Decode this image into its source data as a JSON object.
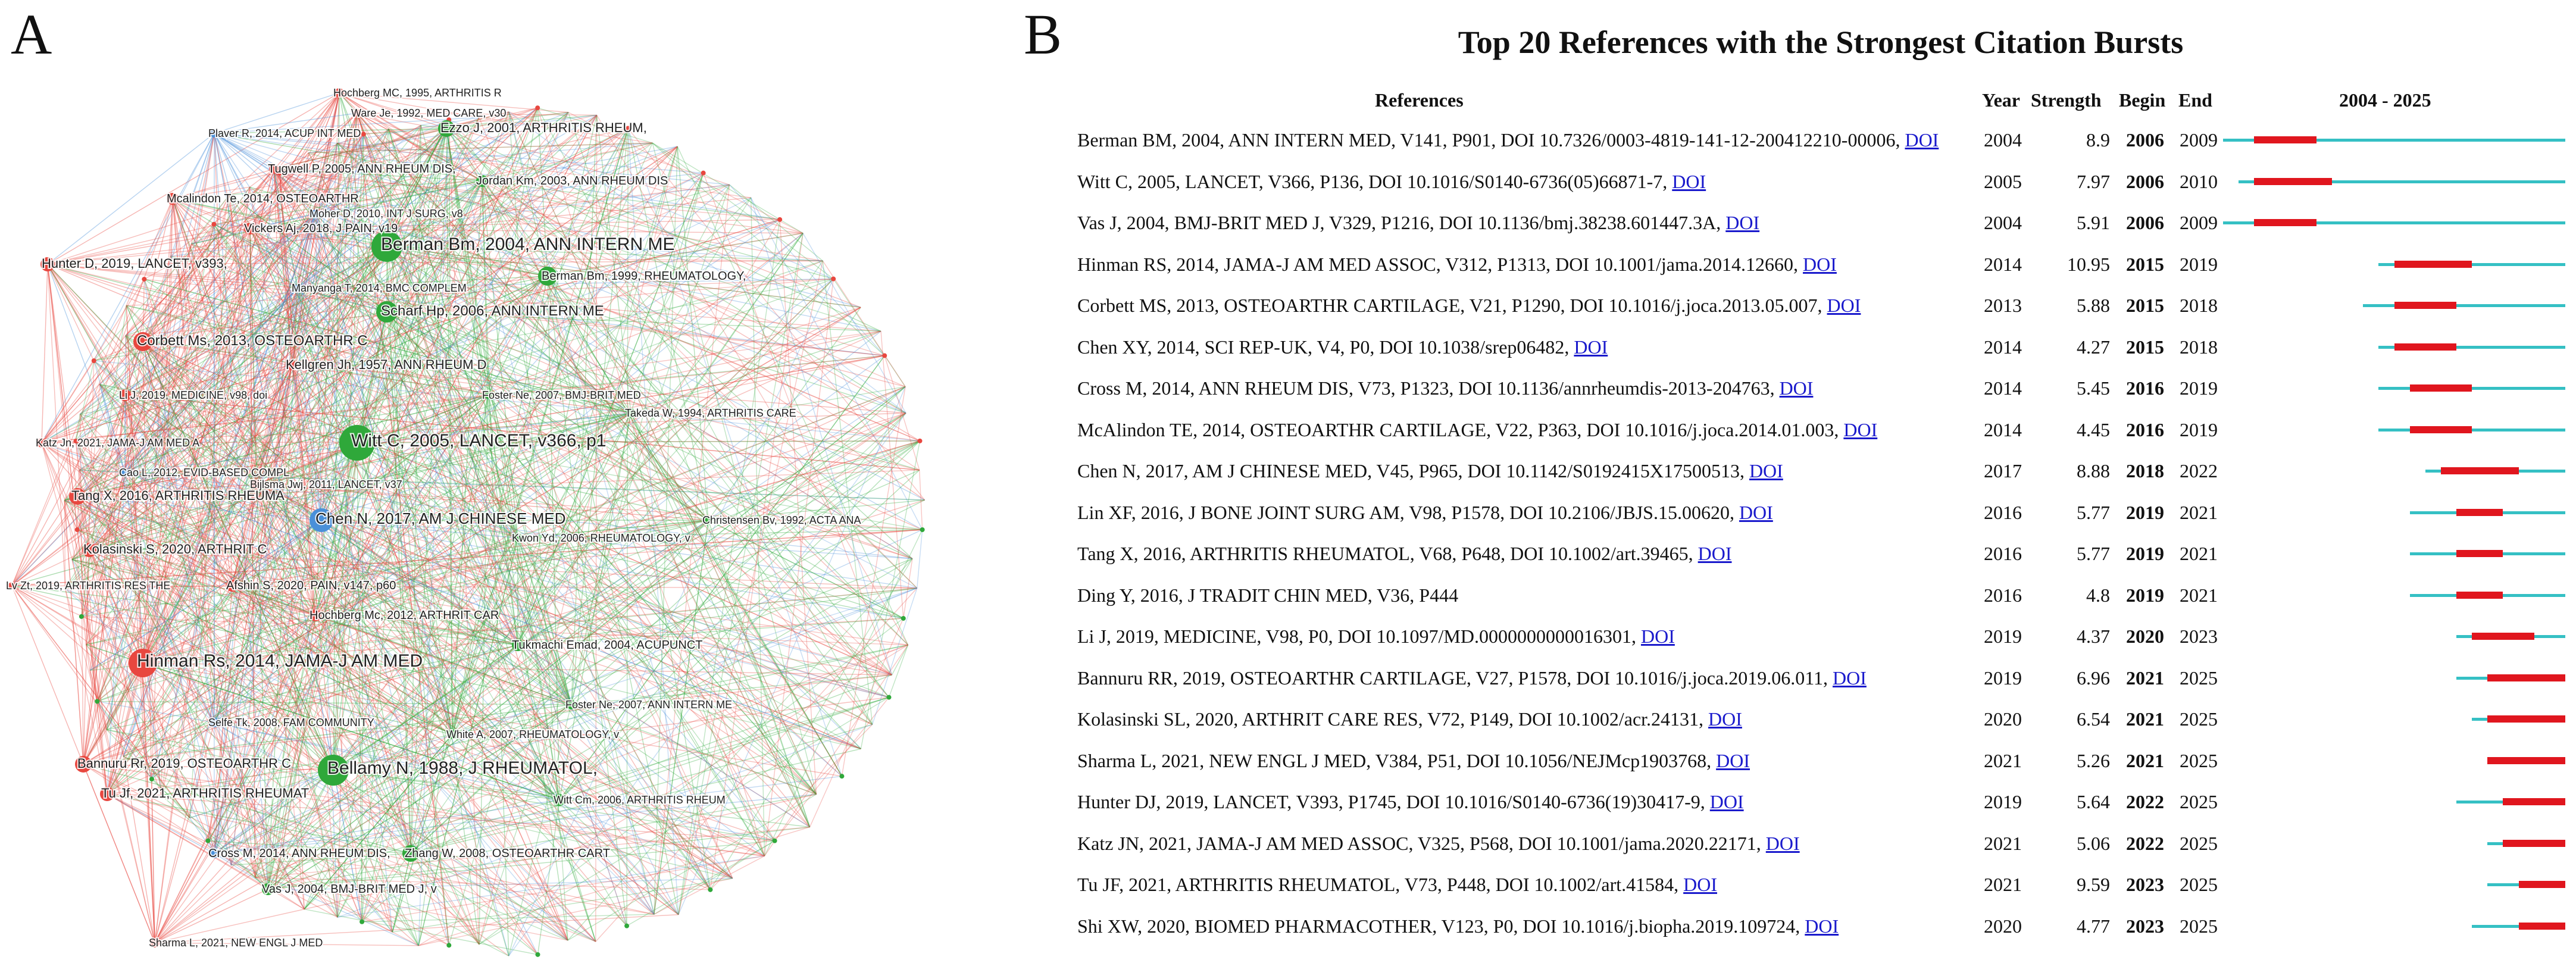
{
  "panels": {
    "left_letter": "A",
    "right_letter": "B"
  },
  "network": {
    "cluster_colors": {
      "red": "#e8473f",
      "green": "#2fa83a",
      "blue": "#4a90d9"
    },
    "labels": [
      {
        "text": "Hochberg MC, 1995, ARTHRITIS R",
        "cluster": "red"
      },
      {
        "text": "Ware Je, 1992, MED CARE, v30",
        "cluster": "red"
      },
      {
        "text": "Plaver R, 2014, ACUP INT MED",
        "cluster": "blue"
      },
      {
        "text": "Ezzo J, 2001, ARTHRITIS RHEUM,",
        "cluster": "green"
      },
      {
        "text": "Tugwell P, 2005, ANN RHEUM DIS,",
        "cluster": "red"
      },
      {
        "text": "Jordan Km, 2003, ANN RHEUM DIS",
        "cluster": "green"
      },
      {
        "text": "Mcalindon Te, 2014, OSTEOARTHR",
        "cluster": "red"
      },
      {
        "text": "Moher D, 2010, INT J SURG, v8",
        "cluster": "blue"
      },
      {
        "text": "Vickers Aj, 2018, J PAIN, v19",
        "cluster": "red"
      },
      {
        "text": "Hunter D, 2019, LANCET, v393,",
        "cluster": "red"
      },
      {
        "text": "Berman Bm, 2004, ANN INTERN ME",
        "cluster": "green"
      },
      {
        "text": "Manyanga T, 2014, BMC COMPLEM",
        "cluster": "blue"
      },
      {
        "text": "Berman Bm, 1999, RHEUMATOLOGY,",
        "cluster": "green"
      },
      {
        "text": "Scharf Hp, 2006, ANN INTERN ME",
        "cluster": "green"
      },
      {
        "text": "Corbett Ms, 2013, OSTEOARTHR C",
        "cluster": "red"
      },
      {
        "text": "Kellgren Jh, 1957, ANN RHEUM D",
        "cluster": "red"
      },
      {
        "text": "Li J, 2019, MEDICINE, v98, doi",
        "cluster": "red"
      },
      {
        "text": "Foster Ne, 2007, BMJ-BRIT MED",
        "cluster": "green"
      },
      {
        "text": "Takeda W, 1994, ARTHRITIS CARE",
        "cluster": "green"
      },
      {
        "text": "Katz Jn, 2021, JAMA-J AM MED A",
        "cluster": "red"
      },
      {
        "text": "Witt C, 2005, LANCET, v366, p1",
        "cluster": "green"
      },
      {
        "text": "Cao L, 2012, EVID-BASED COMPL",
        "cluster": "blue"
      },
      {
        "text": "Tang X, 2016, ARTHRITIS RHEUMA",
        "cluster": "red"
      },
      {
        "text": "Bijlsma Jwj, 2011, LANCET, v37",
        "cluster": "red"
      },
      {
        "text": "Christensen Bv, 1992, ACTA ANA",
        "cluster": "green"
      },
      {
        "text": "Chen N, 2017, AM J CHINESE MED",
        "cluster": "blue"
      },
      {
        "text": "Kolasinski S, 2020, ARTHRIT C",
        "cluster": "red"
      },
      {
        "text": "Kwon Yd, 2006, RHEUMATOLOGY, v",
        "cluster": "green"
      },
      {
        "text": "Lv Zt, 2019, ARTHRITIS RES THE",
        "cluster": "red"
      },
      {
        "text": "Afshin S, 2020, PAIN, v147, p60",
        "cluster": "red"
      },
      {
        "text": "Hochberg Mc, 2012, ARTHRIT CAR",
        "cluster": "red"
      },
      {
        "text": "Tukmachi Emad, 2004, ACUPUNCT",
        "cluster": "green"
      },
      {
        "text": "Hinman Rs, 2014, JAMA-J AM MED",
        "cluster": "red"
      },
      {
        "text": "Foster Ne, 2007, ANN INTERN ME",
        "cluster": "green"
      },
      {
        "text": "Selfe Tk, 2008, FAM COMMUNITY",
        "cluster": "blue"
      },
      {
        "text": "White A, 2007, RHEUMATOLOGY, v",
        "cluster": "green"
      },
      {
        "text": "Bannuru Rr, 2019, OSTEOARTHR C",
        "cluster": "red"
      },
      {
        "text": "Bellamy N, 1988, J RHEUMATOL,",
        "cluster": "green"
      },
      {
        "text": "Tu Jf, 2021, ARTHRITIS RHEUMAT",
        "cluster": "red"
      },
      {
        "text": "Witt Cm, 2006, ARTHRITIS RHEUM",
        "cluster": "green"
      },
      {
        "text": "Cross M, 2014, ANN RHEUM DIS,",
        "cluster": "blue"
      },
      {
        "text": "Zhang W, 2008, OSTEOARTHR CART",
        "cluster": "green"
      },
      {
        "text": "Vas J, 2004, BMJ-BRIT MED J, v",
        "cluster": "green"
      },
      {
        "text": "Sharma L, 2021, NEW ENGL J MED",
        "cluster": "red"
      }
    ]
  },
  "burst_table": {
    "title": "Top 20 References with the Strongest Citation Bursts",
    "headers": {
      "references": "References",
      "year": "Year",
      "strength": "Strength",
      "begin": "Begin",
      "end": "End",
      "range": "2004 - 2025"
    },
    "timeline": {
      "start": 2004,
      "end": 2025
    },
    "colors": {
      "track": "#35c0c4",
      "burst": "#e0161e",
      "link": "#1a1acc"
    },
    "rows": [
      {
        "ref": "Berman BM, 2004, ANN INTERN MED, V141, P901, DOI 10.7326/0003-4819-141-12-200412210-00006,",
        "doi": "DOI",
        "year": "2004",
        "strength": "8.9",
        "begin": "2006",
        "end": "2009"
      },
      {
        "ref": "Witt C, 2005, LANCET, V366, P136, DOI 10.1016/S0140-6736(05)66871-7,",
        "doi": "DOI",
        "year": "2005",
        "strength": "7.97",
        "begin": "2006",
        "end": "2010"
      },
      {
        "ref": "Vas J, 2004, BMJ-BRIT MED J, V329, P1216, DOI 10.1136/bmj.38238.601447.3A,",
        "doi": "DOI",
        "year": "2004",
        "strength": "5.91",
        "begin": "2006",
        "end": "2009"
      },
      {
        "ref": "Hinman RS, 2014, JAMA-J AM MED ASSOC, V312, P1313, DOI 10.1001/jama.2014.12660,",
        "doi": "DOI",
        "year": "2014",
        "strength": "10.95",
        "begin": "2015",
        "end": "2019"
      },
      {
        "ref": "Corbett MS, 2013, OSTEOARTHR CARTILAGE, V21, P1290, DOI 10.1016/j.joca.2013.05.007,",
        "doi": "DOI",
        "year": "2013",
        "strength": "5.88",
        "begin": "2015",
        "end": "2018"
      },
      {
        "ref": "Chen XY, 2014, SCI REP-UK, V4, P0, DOI 10.1038/srep06482,",
        "doi": "DOI",
        "year": "2014",
        "strength": "4.27",
        "begin": "2015",
        "end": "2018"
      },
      {
        "ref": "Cross M, 2014, ANN RHEUM DIS, V73, P1323, DOI 10.1136/annrheumdis-2013-204763,",
        "doi": "DOI",
        "year": "2014",
        "strength": "5.45",
        "begin": "2016",
        "end": "2019"
      },
      {
        "ref": "McAlindon TE, 2014, OSTEOARTHR CARTILAGE, V22, P363, DOI 10.1016/j.joca.2014.01.003,",
        "doi": "DOI",
        "year": "2014",
        "strength": "4.45",
        "begin": "2016",
        "end": "2019"
      },
      {
        "ref": "Chen N, 2017, AM J CHINESE MED, V45, P965, DOI 10.1142/S0192415X17500513,",
        "doi": "DOI",
        "year": "2017",
        "strength": "8.88",
        "begin": "2018",
        "end": "2022"
      },
      {
        "ref": "Lin XF, 2016, J BONE JOINT SURG AM, V98, P1578, DOI 10.2106/JBJS.15.00620,",
        "doi": "DOI",
        "year": "2016",
        "strength": "5.77",
        "begin": "2019",
        "end": "2021"
      },
      {
        "ref": "Tang X, 2016, ARTHRITIS RHEUMATOL, V68, P648, DOI 10.1002/art.39465,",
        "doi": "DOI",
        "year": "2016",
        "strength": "5.77",
        "begin": "2019",
        "end": "2021"
      },
      {
        "ref": "Ding Y, 2016, J TRADIT CHIN MED, V36, P444",
        "doi": "",
        "year": "2016",
        "strength": "4.8",
        "begin": "2019",
        "end": "2021"
      },
      {
        "ref": "Li J, 2019, MEDICINE, V98, P0, DOI 10.1097/MD.0000000000016301,",
        "doi": "DOI",
        "year": "2019",
        "strength": "4.37",
        "begin": "2020",
        "end": "2023"
      },
      {
        "ref": "Bannuru RR, 2019, OSTEOARTHR CARTILAGE, V27, P1578, DOI 10.1016/j.joca.2019.06.011,",
        "doi": "DOI",
        "year": "2019",
        "strength": "6.96",
        "begin": "2021",
        "end": "2025"
      },
      {
        "ref": "Kolasinski SL, 2020, ARTHRIT CARE RES, V72, P149, DOI 10.1002/acr.24131,",
        "doi": "DOI",
        "year": "2020",
        "strength": "6.54",
        "begin": "2021",
        "end": "2025"
      },
      {
        "ref": "Sharma L, 2021, NEW ENGL J MED, V384, P51, DOI 10.1056/NEJMcp1903768,",
        "doi": "DOI",
        "year": "2021",
        "strength": "5.26",
        "begin": "2021",
        "end": "2025"
      },
      {
        "ref": "Hunter DJ, 2019, LANCET, V393, P1745, DOI 10.1016/S0140-6736(19)30417-9,",
        "doi": "DOI",
        "year": "2019",
        "strength": "5.64",
        "begin": "2022",
        "end": "2025"
      },
      {
        "ref": "Katz JN, 2021, JAMA-J AM MED ASSOC, V325, P568, DOI 10.1001/jama.2020.22171,",
        "doi": "DOI",
        "year": "2021",
        "strength": "5.06",
        "begin": "2022",
        "end": "2025"
      },
      {
        "ref": "Tu JF, 2021, ARTHRITIS RHEUMATOL, V73, P448, DOI 10.1002/art.41584,",
        "doi": "DOI",
        "year": "2021",
        "strength": "9.59",
        "begin": "2023",
        "end": "2025"
      },
      {
        "ref": "Shi XW, 2020, BIOMED PHARMACOTHER, V123, P0, DOI 10.1016/j.biopha.2019.109724,",
        "doi": "DOI",
        "year": "2020",
        "strength": "4.77",
        "begin": "2023",
        "end": "2025"
      }
    ]
  }
}
